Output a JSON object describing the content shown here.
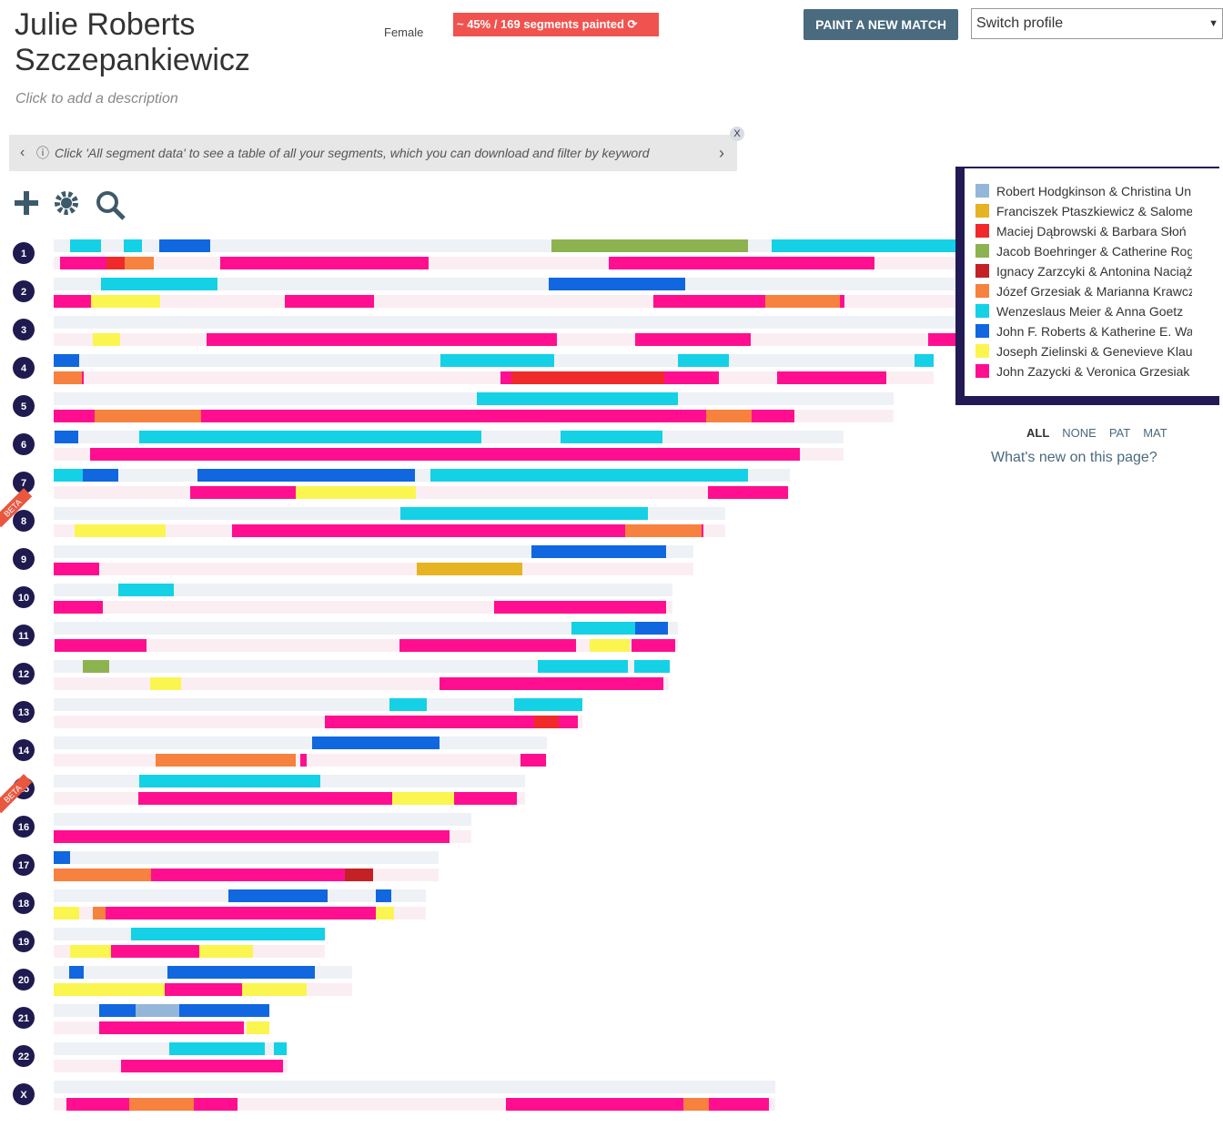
{
  "header": {
    "name": "Julie Roberts Szczepankiewicz",
    "gender": "Female",
    "status": "~ 45% / 169 segments painted",
    "button": "PAINT A NEW MATCH",
    "profile_select": "Switch profile",
    "description": "Click to add a description"
  },
  "info_bar": {
    "text": "Click 'All segment data' to see a table of all your segments, which you can download and filter by keyword",
    "close": "X"
  },
  "chromosomes": [
    "1",
    "2",
    "3",
    "4",
    "5",
    "6",
    "7",
    "8",
    "9",
    "10",
    "11",
    "12",
    "13",
    "14",
    "15",
    "16",
    "17",
    "18",
    "19",
    "20",
    "21",
    "22",
    "X"
  ],
  "beta_labels": [
    "BETA",
    "BETA"
  ],
  "legend": {
    "items": [
      {
        "name": "Robert Hodgkinson & Christina Un",
        "color": "#94b6d9"
      },
      {
        "name": "Franciszek Ptaszkiewicz & Salome",
        "color": "#e6b422"
      },
      {
        "name": "Maciej Dąbrowski & Barbara Słoń",
        "color": "#f02a2a"
      },
      {
        "name": "Jacob Boehringer & Catherine Rog",
        "color": "#8db351"
      },
      {
        "name": "Ignacy Zarzcyki & Antonina Naciąż",
        "color": "#c42126"
      },
      {
        "name": "Józef Grzesiak & Marianna Krawcz",
        "color": "#f7813f"
      },
      {
        "name": "Wenzeslaus Meier & Anna Goetz",
        "color": "#14d1e6"
      },
      {
        "name": "John F. Roberts & Katherine E. Wa",
        "color": "#1067e0"
      },
      {
        "name": "Joseph Zielinski & Genevieve Klau",
        "color": "#fbf550"
      },
      {
        "name": "John Zazycki & Veronica Grzesiak",
        "color": "#ff0f8f"
      }
    ]
  },
  "filters": [
    "ALL",
    "NONE",
    "PAT",
    "MAT"
  ],
  "whats_new": "What's new on this page?"
}
